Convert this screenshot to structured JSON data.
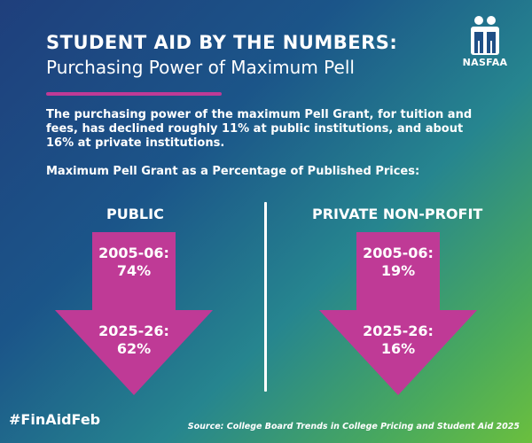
{
  "header": {
    "title": "STUDENT AID BY THE NUMBERS:",
    "subtitle": "Purchasing Power of Maximum Pell"
  },
  "logo": {
    "text": "NASFAA",
    "icon": "nasfaa-people-logo-icon"
  },
  "intro": "The purchasing power of the maximum Pell Grant, for tuition and fees, has declined roughly 11% at public institutions, and about 16% at private institutions.",
  "table_title": "Maximum Pell Grant as a Percentage of Published Prices:",
  "columns": [
    {
      "label": "PUBLIC",
      "start_year": "2005-06:",
      "start_value": "74%",
      "end_year": "2025-26:",
      "end_value": "62%",
      "icon": "down-arrow-icon"
    },
    {
      "label": "PRIVATE NON-PROFIT",
      "start_year": "2005-06:",
      "start_value": "19%",
      "end_year": "2025-26:",
      "end_value": "16%",
      "icon": "down-arrow-icon"
    }
  ],
  "footer": {
    "hashtag": "#FinAidFeb",
    "source": "Source: College Board Trends in College Pricing and Student Aid 2025"
  },
  "colors": {
    "accent_magenta": "#bf3a96",
    "background_start": "#1f3f7c",
    "background_end": "#6bbf3e",
    "text": "#ffffff"
  }
}
